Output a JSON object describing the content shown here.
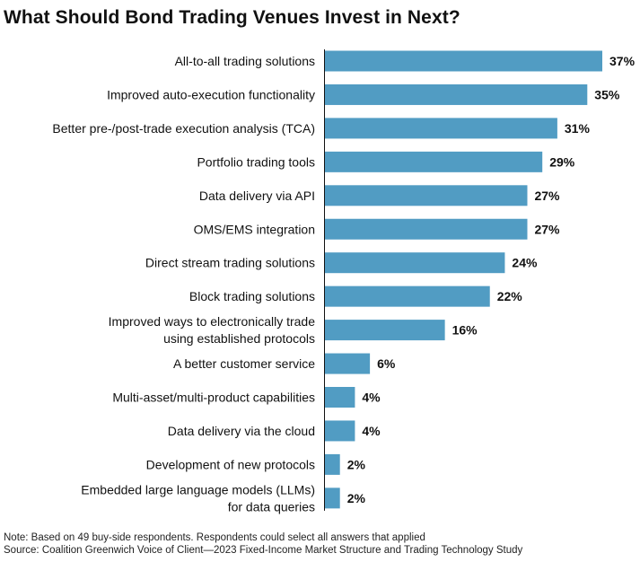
{
  "chart_data": {
    "type": "bar",
    "orientation": "horizontal",
    "title": "What Should Bond Trading Venues Invest in Next?",
    "categories": [
      "All-to-all trading solutions",
      "Improved auto-execution functionality",
      "Better pre-/post-trade execution analysis (TCA)",
      "Portfolio trading tools",
      "Data delivery via API",
      "OMS/EMS integration",
      "Direct stream trading solutions",
      "Block trading solutions",
      "Improved ways to electronically trade\nusing established protocols",
      "A better customer service",
      "Multi-asset/multi-product capabilities",
      "Data delivery via the cloud",
      "Development of new protocols",
      "Embedded large language models (LLMs)\nfor data queries"
    ],
    "values": [
      37,
      35,
      31,
      29,
      27,
      27,
      24,
      22,
      16,
      6,
      4,
      4,
      2,
      2
    ],
    "value_labels": [
      "37%",
      "35%",
      "31%",
      "29%",
      "27%",
      "27%",
      "24%",
      "22%",
      "16%",
      "6%",
      "4%",
      "4%",
      "2%",
      "2%"
    ],
    "unit": "%",
    "xlim": [
      0,
      37
    ],
    "grid": false,
    "bar_color": "#519cc3"
  },
  "notes": {
    "note": "Note: Based on 49 buy-side respondents. Respondents could select all answers that applied",
    "source": "Source: Coalition Greenwich Voice of Client—2023 Fixed-Income Market Structure and Trading Technology Study"
  }
}
